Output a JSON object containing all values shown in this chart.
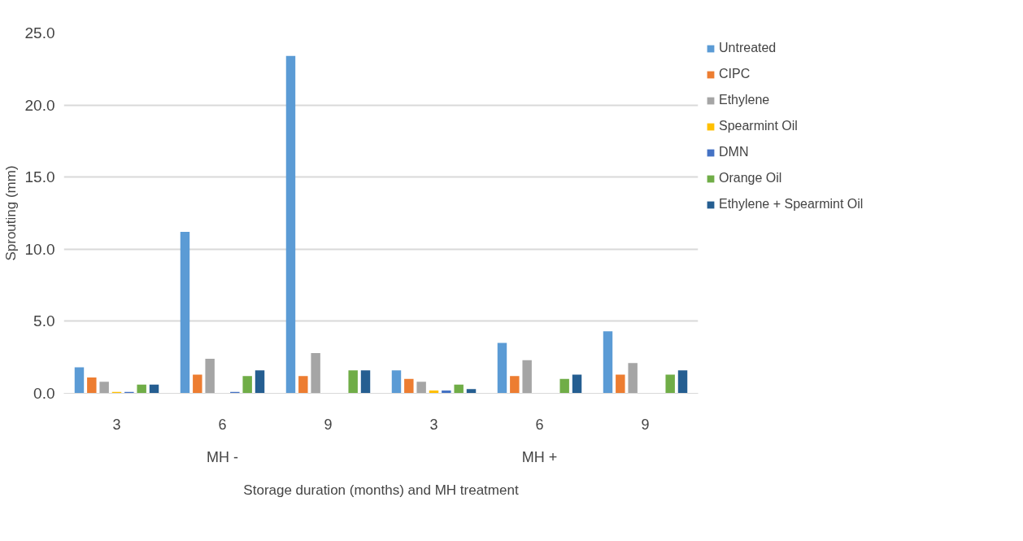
{
  "chart_data": {
    "type": "bar",
    "xlabel": "Storage duration (months) and MH treatment",
    "ylabel": "Sprouting (mm)",
    "categories": [
      "3",
      "6",
      "9",
      "3",
      "6",
      "9"
    ],
    "annotations": [
      "MH -",
      "MH +"
    ],
    "series": [
      {
        "name": "Untreated",
        "color": "#5b9bd5",
        "values": [
          1.8,
          11.2,
          23.4,
          1.6,
          3.5,
          4.3
        ]
      },
      {
        "name": "CIPC",
        "color": "#ed7d31",
        "values": [
          1.1,
          1.3,
          1.2,
          1.0,
          1.2,
          1.3
        ]
      },
      {
        "name": "Ethylene",
        "color": "#a5a5a5",
        "values": [
          0.8,
          2.4,
          2.8,
          0.8,
          2.3,
          2.1
        ]
      },
      {
        "name": "Spearmint Oil",
        "color": "#ffc000",
        "values": [
          0.1,
          null,
          null,
          0.2,
          null,
          null
        ]
      },
      {
        "name": "DMN",
        "color": "#4472c4",
        "values": [
          0.1,
          0.1,
          null,
          0.2,
          null,
          null
        ]
      },
      {
        "name": "Orange Oil",
        "color": "#70ad47",
        "values": [
          0.6,
          1.2,
          1.6,
          0.6,
          1.0,
          1.3
        ]
      },
      {
        "name": "Ethylene + Spearmint Oil",
        "color": "#255e91",
        "values": [
          0.6,
          1.6,
          1.6,
          0.3,
          1.3,
          1.6
        ]
      }
    ],
    "ylim": [
      0,
      25
    ],
    "yticks": [
      {
        "value": 0,
        "label": "0.0"
      },
      {
        "value": 5,
        "label": "5.0"
      },
      {
        "value": 10,
        "label": "10.0"
      },
      {
        "value": 15,
        "label": "15.0"
      },
      {
        "value": 20,
        "label": "20.0"
      },
      {
        "value": 25,
        "label": "25.0"
      }
    ],
    "grid": "y",
    "legend": "right"
  }
}
